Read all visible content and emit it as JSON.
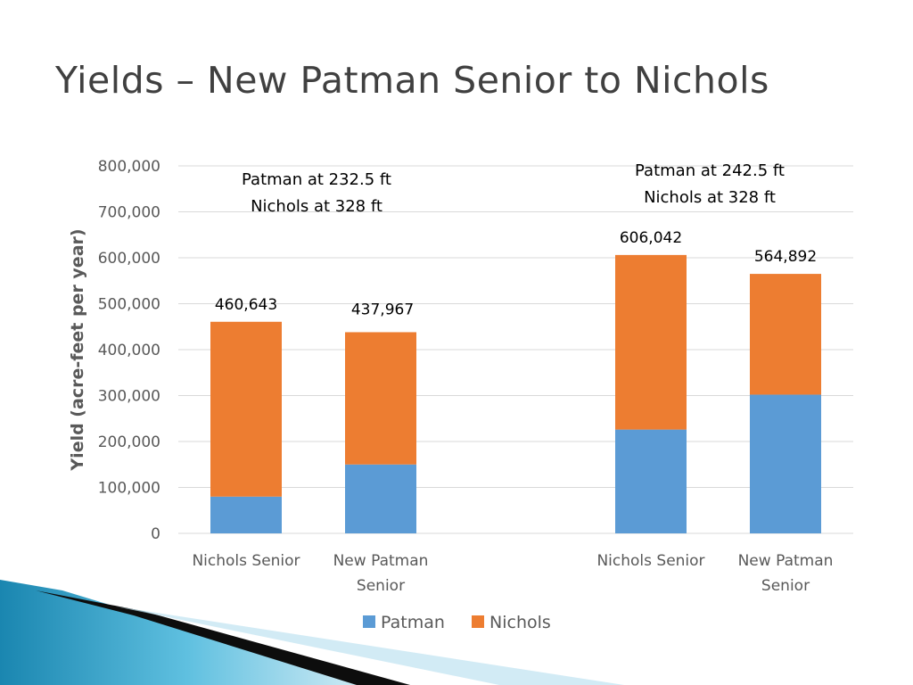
{
  "slide": {
    "title": "Yields – New Patman Senior to Nichols"
  },
  "chart_data": {
    "type": "bar",
    "stacked": true,
    "title": "",
    "xlabel": "",
    "ylabel": "Yield (acre-feet per year)",
    "ylim": [
      0,
      800000
    ],
    "yticks": [
      0,
      100000,
      200000,
      300000,
      400000,
      500000,
      600000,
      700000,
      800000
    ],
    "ytick_labels": [
      "0",
      "100,000",
      "200,000",
      "300,000",
      "400,000",
      "500,000",
      "600,000",
      "700,000",
      "800,000"
    ],
    "grid": true,
    "legend_position": "bottom",
    "categories": [
      "Nichols Senior",
      "New Patman Senior",
      "",
      "Nichols Senior",
      "New Patman Senior"
    ],
    "series": [
      {
        "name": "Patman",
        "color": "#5b9bd5",
        "values": [
          80000,
          150000,
          null,
          226000,
          302000
        ]
      },
      {
        "name": "Nichols",
        "color": "#ed7d31",
        "values": [
          380643,
          287967,
          null,
          380042,
          262892
        ]
      }
    ],
    "total_labels": [
      "460,643",
      "437,967",
      "",
      "606,042",
      "564,892"
    ],
    "annotations": [
      {
        "lines": [
          "Patman at 232.5 ft",
          "Nichols at 328 ft"
        ],
        "group": "left"
      },
      {
        "lines": [
          "Patman at 242.5 ft",
          "Nichols at 328 ft"
        ],
        "group": "right"
      }
    ]
  }
}
